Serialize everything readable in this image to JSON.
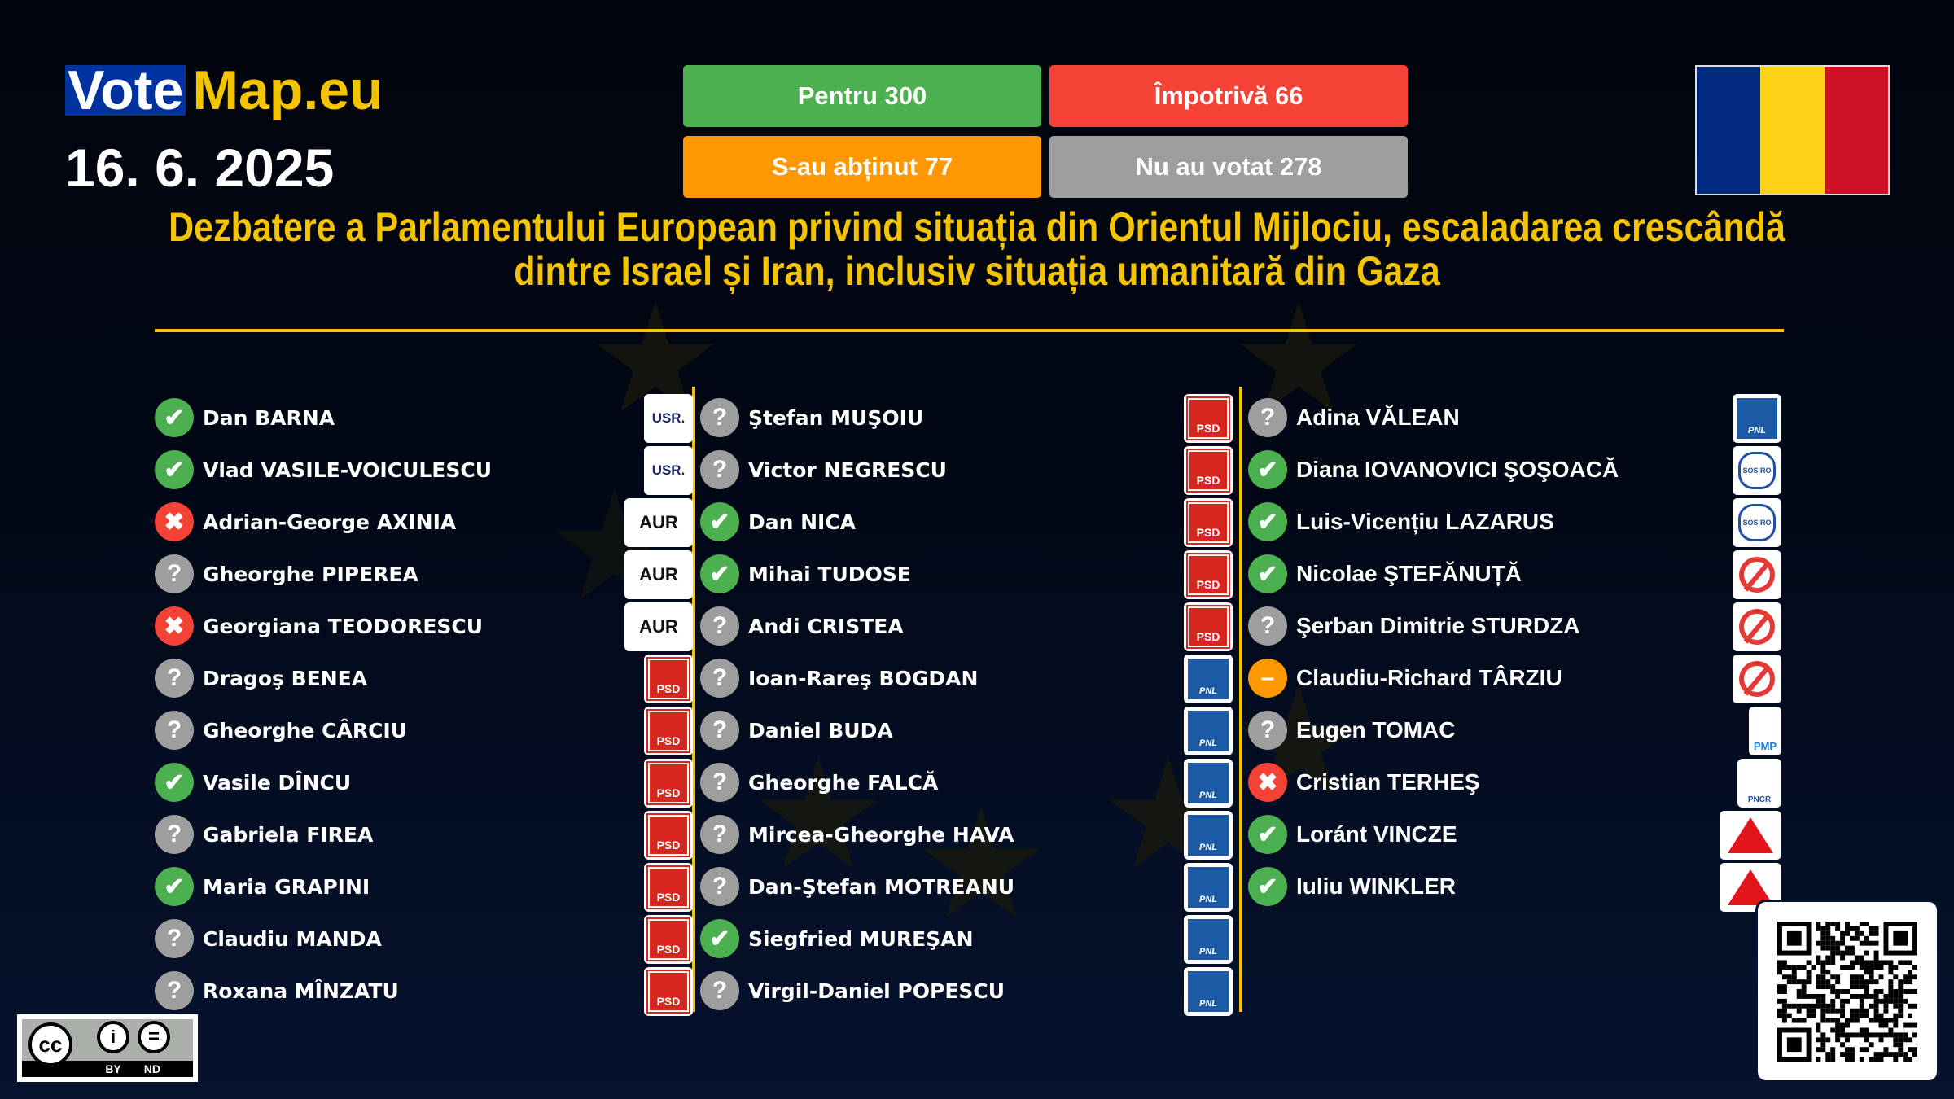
{
  "brand": {
    "vote": "Vote",
    "map": "Map.eu"
  },
  "date": "16. 6. 2025",
  "tallies": {
    "for": "Pentru 300",
    "against": "Împotrivă 66",
    "abstain": "S-au abținut 77",
    "absent": "Nu au votat 278"
  },
  "colors": {
    "for": "#4caf50",
    "against": "#f44336",
    "abstain": "#ff9800",
    "absent": "#9e9e9e",
    "accent": "#f5c400",
    "flag": [
      "#002b7f",
      "#fcd116",
      "#ce1126"
    ]
  },
  "title": [
    "Dezbatere a Parlamentului European privind situația din Orientul Mijlociu, escaladarea crescândă",
    "dintre Israel și Iran, inclusiv situația umanitară din Gaza"
  ],
  "vote_icons": {
    "for": "✔",
    "against": "✖",
    "abstain": "–",
    "absent": "?"
  },
  "columns": [
    [
      {
        "name": "Dan BARNA",
        "vote": "for",
        "party": "USR."
      },
      {
        "name": "Vlad VASILE-VOICULESCU",
        "vote": "for",
        "party": "USR."
      },
      {
        "name": "Adrian-George AXINIA",
        "vote": "against",
        "party": "AUR"
      },
      {
        "name": "Gheorghe PIPEREA",
        "vote": "absent",
        "party": "AUR"
      },
      {
        "name": "Georgiana TEODORESCU",
        "vote": "against",
        "party": "AUR"
      },
      {
        "name": "Dragoş BENEA",
        "vote": "absent",
        "party": "PSD"
      },
      {
        "name": "Gheorghe CÂRCIU",
        "vote": "absent",
        "party": "PSD"
      },
      {
        "name": "Vasile DÎNCU",
        "vote": "for",
        "party": "PSD"
      },
      {
        "name": "Gabriela FIREA",
        "vote": "absent",
        "party": "PSD"
      },
      {
        "name": "Maria GRAPINI",
        "vote": "for",
        "party": "PSD"
      },
      {
        "name": "Claudiu MANDA",
        "vote": "absent",
        "party": "PSD"
      },
      {
        "name": "Roxana MÎNZATU",
        "vote": "absent",
        "party": "PSD"
      }
    ],
    [
      {
        "name": "Ştefan MUŞOIU",
        "vote": "absent",
        "party": "PSD"
      },
      {
        "name": "Victor NEGRESCU",
        "vote": "absent",
        "party": "PSD"
      },
      {
        "name": "Dan NICA",
        "vote": "for",
        "party": "PSD"
      },
      {
        "name": "Mihai TUDOSE",
        "vote": "for",
        "party": "PSD"
      },
      {
        "name": "Andi CRISTEA",
        "vote": "absent",
        "party": "PSD"
      },
      {
        "name": "Ioan-Rareş BOGDAN",
        "vote": "absent",
        "party": "PNL"
      },
      {
        "name": "Daniel BUDA",
        "vote": "absent",
        "party": "PNL"
      },
      {
        "name": "Gheorghe FALCĂ",
        "vote": "absent",
        "party": "PNL"
      },
      {
        "name": "Mircea-Gheorghe HAVA",
        "vote": "absent",
        "party": "PNL"
      },
      {
        "name": "Dan-Ştefan MOTREANU",
        "vote": "absent",
        "party": "PNL"
      },
      {
        "name": "Siegfried MUREŞAN",
        "vote": "for",
        "party": "PNL"
      },
      {
        "name": "Virgil-Daniel POPESCU",
        "vote": "absent",
        "party": "PNL"
      }
    ],
    [
      {
        "name": "Adina VĂLEAN",
        "vote": "absent",
        "party": "PNL"
      },
      {
        "name": "Diana IOVANOVICI ŞOŞOACĂ",
        "vote": "for",
        "party": "SOS RO"
      },
      {
        "name": "Luis-Vicențiu LAZARUS",
        "vote": "for",
        "party": "SOS RO"
      },
      {
        "name": "Nicolae ŞTEFĂNUȚĂ",
        "vote": "for",
        "party": "independent"
      },
      {
        "name": "Şerban Dimitrie STURDZA",
        "vote": "absent",
        "party": "independent"
      },
      {
        "name": "Claudiu-Richard TÂRZIU",
        "vote": "abstain",
        "party": "independent"
      },
      {
        "name": "Eugen TOMAC",
        "vote": "absent",
        "party": "PMP"
      },
      {
        "name": "Cristian TERHEŞ",
        "vote": "against",
        "party": "PNCR"
      },
      {
        "name": "Loránt VINCZE",
        "vote": "for",
        "party": "UDMR"
      },
      {
        "name": "Iuliu WINKLER",
        "vote": "for",
        "party": "UDMR"
      }
    ]
  ],
  "license": {
    "by": "BY",
    "nd": "ND",
    "cc": "cc"
  }
}
